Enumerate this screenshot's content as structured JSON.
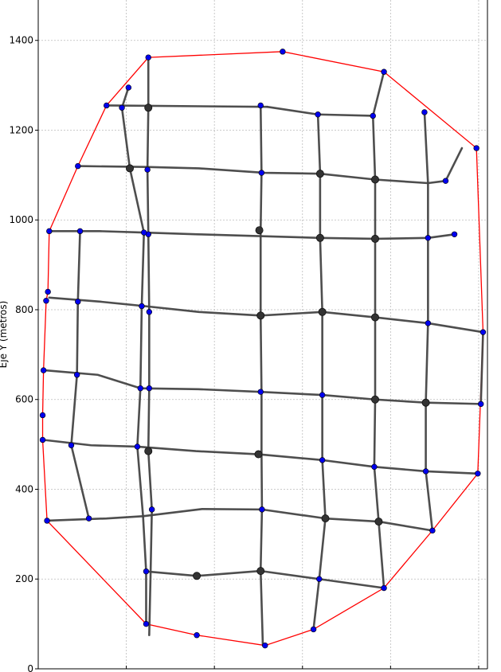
{
  "chart_data": {
    "type": "scatter",
    "title": "",
    "xlabel": "",
    "ylabel": "Eje Y (metros)",
    "grid": true,
    "xlim": [
      0,
      1020
    ],
    "ylim": [
      0,
      1490
    ],
    "x_gridlines": [
      200,
      400,
      600,
      800,
      1000
    ],
    "yticks": [
      0,
      200,
      400,
      600,
      800,
      1000,
      1200,
      1400
    ],
    "colors": {
      "boundary": "#ff0000",
      "street": "#444444",
      "node_blue": "#0000ee",
      "node_gray": "#333333",
      "grid": "#bbbbbb"
    },
    "boundary": [
      [
        25,
        975
      ],
      [
        90,
        1120
      ],
      [
        155,
        1255
      ],
      [
        250,
        1362
      ],
      [
        555,
        1375
      ],
      [
        785,
        1330
      ],
      [
        995,
        1160
      ],
      [
        1010,
        750
      ],
      [
        998,
        435
      ],
      [
        895,
        308
      ],
      [
        785,
        180
      ],
      [
        625,
        88
      ],
      [
        515,
        52
      ],
      [
        360,
        75
      ],
      [
        245,
        100
      ],
      [
        20,
        330
      ],
      [
        10,
        510
      ],
      [
        10,
        565
      ],
      [
        12,
        665
      ],
      [
        18,
        820
      ],
      [
        22,
        840
      ],
      [
        25,
        975
      ]
    ],
    "streets": [
      [
        [
          155,
          1255
        ],
        [
          520,
          1252
        ]
      ],
      [
        [
          520,
          1252
        ],
        [
          635,
          1235
        ],
        [
          760,
          1232
        ]
      ],
      [
        [
          205,
          1295
        ],
        [
          190,
          1250
        ]
      ],
      [
        [
          90,
          1120
        ],
        [
          245,
          1118
        ],
        [
          365,
          1115
        ],
        [
          515,
          1105
        ],
        [
          640,
          1103
        ],
        [
          765,
          1090
        ],
        [
          885,
          1082
        ],
        [
          925,
          1087
        ],
        [
          962,
          1160
        ]
      ],
      [
        [
          25,
          975
        ],
        [
          140,
          975
        ],
        [
          240,
          972
        ],
        [
          363,
          968
        ],
        [
          640,
          960
        ],
        [
          765,
          958
        ],
        [
          885,
          960
        ],
        [
          945,
          968
        ]
      ],
      [
        [
          25,
          827
        ],
        [
          140,
          818
        ],
        [
          242,
          808
        ],
        [
          365,
          795
        ],
        [
          505,
          787
        ],
        [
          645,
          795
        ],
        [
          765,
          783
        ],
        [
          885,
          770
        ],
        [
          1010,
          750
        ]
      ],
      [
        [
          15,
          665
        ],
        [
          135,
          655
        ],
        [
          232,
          625
        ],
        [
          363,
          623
        ],
        [
          505,
          617
        ],
        [
          645,
          610
        ],
        [
          765,
          600
        ],
        [
          880,
          593
        ],
        [
          1005,
          590
        ]
      ],
      [
        [
          12,
          510
        ],
        [
          120,
          498
        ],
        [
          225,
          495
        ],
        [
          358,
          485
        ],
        [
          500,
          478
        ],
        [
          645,
          465
        ],
        [
          763,
          450
        ],
        [
          880,
          440
        ],
        [
          998,
          435
        ]
      ],
      [
        [
          20,
          330
        ],
        [
          155,
          335
        ],
        [
          238,
          340
        ],
        [
          372,
          356
        ],
        [
          508,
          355
        ],
        [
          652,
          335
        ],
        [
          773,
          328
        ],
        [
          895,
          308
        ]
      ],
      [
        [
          245,
          217
        ],
        [
          360,
          207
        ],
        [
          505,
          218
        ],
        [
          638,
          200
        ],
        [
          785,
          180
        ]
      ],
      [
        [
          250,
          1362
        ],
        [
          250,
          1250
        ],
        [
          248,
          1112
        ],
        [
          250,
          968
        ],
        [
          252,
          795
        ],
        [
          252,
          625
        ],
        [
          250,
          485
        ],
        [
          258,
          355
        ],
        [
          255,
          207
        ],
        [
          252,
          75
        ]
      ],
      [
        [
          505,
          1255
        ],
        [
          507,
          1105
        ],
        [
          505,
          977
        ],
        [
          505,
          787
        ],
        [
          507,
          617
        ],
        [
          507,
          480
        ],
        [
          508,
          355
        ],
        [
          505,
          220
        ],
        [
          510,
          52
        ]
      ],
      [
        [
          635,
          1235
        ],
        [
          640,
          1105
        ],
        [
          640,
          960
        ],
        [
          645,
          795
        ],
        [
          645,
          610
        ],
        [
          645,
          465
        ],
        [
          652,
          335
        ],
        [
          638,
          200
        ],
        [
          625,
          88
        ]
      ],
      [
        [
          785,
          1330
        ],
        [
          760,
          1232
        ],
        [
          765,
          1090
        ],
        [
          765,
          958
        ],
        [
          765,
          783
        ],
        [
          765,
          600
        ],
        [
          763,
          450
        ],
        [
          773,
          328
        ],
        [
          785,
          180
        ]
      ],
      [
        [
          877,
          1240
        ],
        [
          885,
          1082
        ],
        [
          885,
          960
        ],
        [
          885,
          770
        ],
        [
          880,
          593
        ],
        [
          880,
          440
        ],
        [
          895,
          308
        ]
      ],
      [
        [
          190,
          1250
        ],
        [
          208,
          1115
        ],
        [
          240,
          972
        ],
        [
          235,
          808
        ],
        [
          232,
          625
        ],
        [
          225,
          495
        ],
        [
          238,
          340
        ],
        [
          245,
          217
        ],
        [
          245,
          100
        ]
      ],
      [
        [
          95,
          975
        ],
        [
          90,
          818
        ],
        [
          88,
          655
        ],
        [
          75,
          498
        ],
        [
          115,
          335
        ]
      ],
      [
        [
          1010,
          750
        ],
        [
          1005,
          590
        ]
      ]
    ],
    "nodes_blue": [
      [
        25,
        975
      ],
      [
        90,
        1120
      ],
      [
        155,
        1255
      ],
      [
        205,
        1295
      ],
      [
        250,
        1362
      ],
      [
        555,
        1375
      ],
      [
        785,
        1330
      ],
      [
        877,
        1240
      ],
      [
        995,
        1160
      ],
      [
        925,
        1087
      ],
      [
        945,
        968
      ],
      [
        1010,
        750
      ],
      [
        1005,
        590
      ],
      [
        998,
        435
      ],
      [
        895,
        308
      ],
      [
        785,
        180
      ],
      [
        625,
        88
      ],
      [
        515,
        52
      ],
      [
        360,
        75
      ],
      [
        245,
        100
      ],
      [
        20,
        330
      ],
      [
        10,
        510
      ],
      [
        10,
        565
      ],
      [
        12,
        665
      ],
      [
        18,
        820
      ],
      [
        22,
        840
      ],
      [
        95,
        975
      ],
      [
        90,
        818
      ],
      [
        88,
        655
      ],
      [
        75,
        498
      ],
      [
        115,
        335
      ],
      [
        190,
        1250
      ],
      [
        505,
        1255
      ],
      [
        635,
        1235
      ],
      [
        760,
        1232
      ],
      [
        248,
        1112
      ],
      [
        507,
        1105
      ],
      [
        250,
        968
      ],
      [
        885,
        960
      ],
      [
        235,
        808
      ],
      [
        252,
        795
      ],
      [
        505,
        787
      ],
      [
        885,
        770
      ],
      [
        232,
        625
      ],
      [
        252,
        625
      ],
      [
        505,
        617
      ],
      [
        645,
        610
      ],
      [
        225,
        495
      ],
      [
        645,
        465
      ],
      [
        763,
        450
      ],
      [
        880,
        440
      ],
      [
        258,
        355
      ],
      [
        508,
        355
      ],
      [
        245,
        217
      ],
      [
        638,
        200
      ],
      [
        240,
        972
      ]
    ],
    "nodes_gray": [
      [
        250,
        1250
      ],
      [
        208,
        1115
      ],
      [
        640,
        1103
      ],
      [
        765,
        1090
      ],
      [
        502,
        977
      ],
      [
        640,
        960
      ],
      [
        765,
        958
      ],
      [
        505,
        787
      ],
      [
        645,
        795
      ],
      [
        765,
        783
      ],
      [
        880,
        593
      ],
      [
        765,
        600
      ],
      [
        250,
        485
      ],
      [
        500,
        478
      ],
      [
        652,
        335
      ],
      [
        773,
        328
      ],
      [
        360,
        207
      ],
      [
        505,
        218
      ]
    ]
  }
}
